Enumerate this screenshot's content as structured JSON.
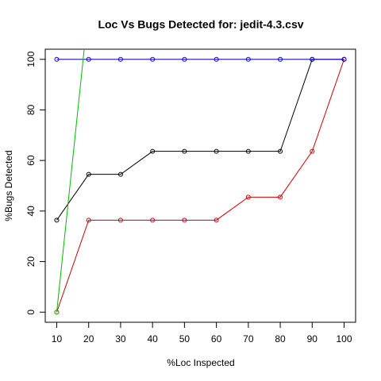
{
  "chart_data": {
    "type": "line",
    "title": "Loc Vs Bugs Detected for: jedit-4.3.csv",
    "x_label": "%Loc Inspected",
    "y_label": "%Bugs Detected",
    "x": [
      10,
      20,
      30,
      40,
      50,
      60,
      70,
      80,
      90,
      100
    ],
    "xlim": [
      6.4,
      103.6
    ],
    "xticks": [
      10,
      20,
      30,
      40,
      50,
      60,
      70,
      80,
      90,
      100
    ],
    "ylim": [
      -4,
      104
    ],
    "yticks": [
      0,
      20,
      40,
      60,
      80,
      100
    ],
    "series": [
      {
        "color": "#000000",
        "values": [
          36.4,
          54.5,
          54.5,
          63.6,
          63.6,
          63.6,
          63.6,
          63.6,
          100,
          100
        ]
      },
      {
        "color": "#cc0000",
        "values": [
          0,
          36.4,
          36.4,
          36.4,
          36.4,
          36.4,
          45.5,
          45.5,
          63.6,
          100
        ]
      },
      {
        "color": "#0000cc",
        "values": [
          100,
          100,
          100,
          100,
          100,
          100,
          100,
          100,
          100,
          100
        ]
      },
      {
        "color": "#00bb00",
        "x": [
          10,
          20
        ],
        "values": [
          0,
          121
        ]
      }
    ]
  }
}
